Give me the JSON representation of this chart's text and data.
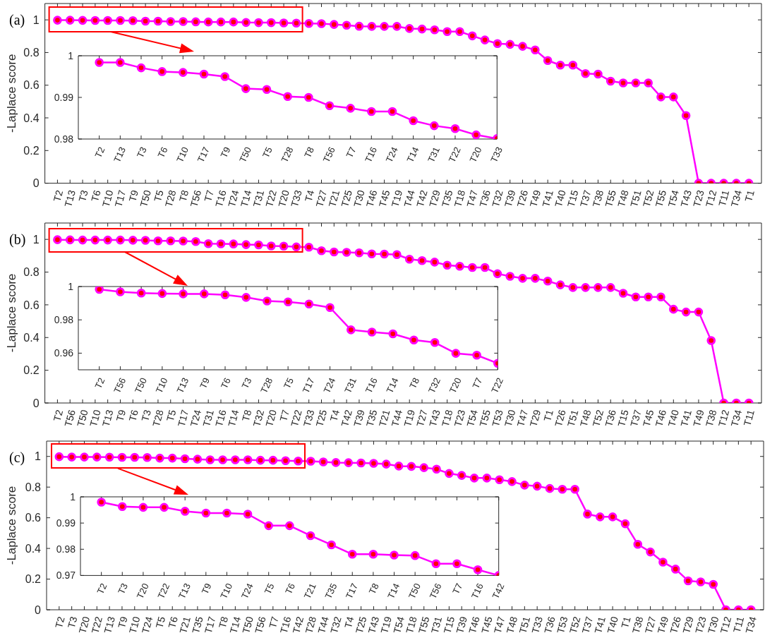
{
  "chart_data": [
    {
      "type": "line",
      "title": "(a)",
      "ylabel": "-Laplace score",
      "categories": [
        "T2",
        "T13",
        "T3",
        "T6",
        "T10",
        "T17",
        "T9",
        "T50",
        "T5",
        "T28",
        "T8",
        "T56",
        "T7",
        "T16",
        "T24",
        "T14",
        "T31",
        "T22",
        "T20",
        "T33",
        "T4",
        "T27",
        "T21",
        "T25",
        "T30",
        "T46",
        "T45",
        "T19",
        "T44",
        "T42",
        "T29",
        "T35",
        "T18",
        "T47",
        "T36",
        "T32",
        "T39",
        "T26",
        "T49",
        "T41",
        "T40",
        "T15",
        "T37",
        "T38",
        "T55",
        "T48",
        "T51",
        "T52",
        "T55",
        "T54",
        "T43",
        "T23",
        "T12",
        "T11",
        "T34",
        "T1"
      ],
      "values": [
        0.998,
        0.998,
        0.997,
        0.996,
        0.996,
        0.996,
        0.995,
        0.992,
        0.992,
        0.99,
        0.99,
        0.988,
        0.987,
        0.987,
        0.987,
        0.984,
        0.983,
        0.983,
        0.981,
        0.98,
        0.978,
        0.977,
        0.972,
        0.967,
        0.961,
        0.96,
        0.96,
        0.96,
        0.947,
        0.944,
        0.939,
        0.928,
        0.928,
        0.902,
        0.877,
        0.855,
        0.85,
        0.838,
        0.816,
        0.751,
        0.723,
        0.723,
        0.671,
        0.668,
        0.625,
        0.614,
        0.614,
        0.614,
        0.528,
        0.528,
        0.414,
        0,
        0,
        0,
        0,
        0
      ],
      "color": "#ff00ff",
      "colors": [
        "#ff0000",
        "#ff0000",
        "#ff0000",
        "#ff0000",
        "#ff0000",
        "#ff0000",
        "#ff0000",
        "#ff0000",
        "#ff0000",
        "#ff0000",
        "#ff0000",
        "#ff0000",
        "#ff0000",
        "#ff0000",
        "#ff0000",
        "#ff0000",
        "#ff0000",
        "#ff0000",
        "#ff0000",
        "#ff0000",
        "#ff0000",
        "#ff0000",
        "#ff0000",
        "#ff0000",
        "#ff0000",
        "#ff0000",
        "#ff0000",
        "#ff0000",
        "#ff0000",
        "#ff0000",
        "#ff0000",
        "#ff0000",
        "#ff0000",
        "#ff0000",
        "#ff0000",
        "#ff0000",
        "#ff0000",
        "#ff0000",
        "#ff0000",
        "#ff0000",
        "#ff0000",
        "#ff0000",
        "#ff0000",
        "#ff0000",
        "#ff0000",
        "#ff0000",
        "#ff0000",
        "#ff0000",
        "#ff0000",
        "#ff0000",
        "#ff0000",
        "#ff0000",
        "#ff0000",
        "#ff0000",
        "#ff0000",
        "#ff0000"
      ],
      "ylim": [
        0,
        1.1
      ],
      "yticks": [
        0,
        0.2,
        0.4,
        0.6,
        0.8,
        1
      ],
      "marker": "circle"
    },
    {
      "type": "line",
      "categories": [
        "T2",
        "T13",
        "T3",
        "T6",
        "T10",
        "T17",
        "T9",
        "T50",
        "T5",
        "T28",
        "T8",
        "T56",
        "T7",
        "T16",
        "T24",
        "T14",
        "T31",
        "T22",
        "T20",
        "T33"
      ],
      "values": [
        0.9984,
        0.9984,
        0.9971,
        0.9962,
        0.996,
        0.9956,
        0.995,
        0.9921,
        0.9919,
        0.9902,
        0.99,
        0.988,
        0.9874,
        0.9866,
        0.9866,
        0.9844,
        0.9832,
        0.9825,
        0.981,
        0.9801
      ],
      "color": "#ff00ff",
      "colors": [
        "#ff0000",
        "#ff0000",
        "#ff0000",
        "#ff0000",
        "#ff0000",
        "#ff0000",
        "#ff0000",
        "#ff0000",
        "#ff0000",
        "#ff0000",
        "#ff0000",
        "#ff0000",
        "#ff0000",
        "#ff0000",
        "#ff0000",
        "#ff0000",
        "#ff0000",
        "#ff0000",
        "#ff0000",
        "#ff0000"
      ],
      "ylim": [
        0.98,
        1
      ],
      "yticks": [
        0.98,
        0.99,
        1
      ],
      "marker": "circle"
    },
    {
      "type": "line",
      "title": "(b)",
      "ylabel": "-Laplace score",
      "categories": [
        "T2",
        "T56",
        "T50",
        "T10",
        "T13",
        "T9",
        "T6",
        "T3",
        "T28",
        "T5",
        "T17",
        "T24",
        "T31",
        "T16",
        "T14",
        "T8",
        "T32",
        "T20",
        "T7",
        "T22",
        "T33",
        "T25",
        "T4",
        "T42",
        "T39",
        "T35",
        "T21",
        "T44",
        "T19",
        "T27",
        "T43",
        "T18",
        "T23",
        "T54",
        "T55",
        "T53",
        "T30",
        "T47",
        "T29",
        "T1",
        "T26",
        "T51",
        "T48",
        "T52",
        "T36",
        "T15",
        "T37",
        "T45",
        "T46",
        "T40",
        "T41",
        "T49",
        "T38",
        "T12",
        "T34",
        "T11"
      ],
      "values": [
        0.998,
        0.997,
        0.996,
        0.996,
        0.996,
        0.996,
        0.995,
        0.994,
        0.991,
        0.991,
        0.99,
        0.987,
        0.974,
        0.973,
        0.972,
        0.968,
        0.966,
        0.96,
        0.959,
        0.954,
        0.952,
        0.931,
        0.923,
        0.921,
        0.918,
        0.911,
        0.91,
        0.907,
        0.879,
        0.87,
        0.861,
        0.842,
        0.836,
        0.828,
        0.828,
        0.79,
        0.774,
        0.762,
        0.762,
        0.745,
        0.722,
        0.706,
        0.706,
        0.706,
        0.706,
        0.671,
        0.648,
        0.648,
        0.648,
        0.573,
        0.556,
        0.556,
        0.382,
        0,
        0,
        0
      ],
      "color": "#ff00ff",
      "colors": [
        "#ff0000",
        "#ff0000",
        "#ff0000",
        "#ff0000",
        "#ff0000",
        "#ff0000",
        "#ff0000",
        "#ff0000",
        "#ff0000",
        "#ff0000",
        "#ff0000",
        "#ff0000",
        "#ff0000",
        "#ff0000",
        "#ff0000",
        "#ff0000",
        "#ff0000",
        "#ff0000",
        "#ff0000",
        "#ff0000",
        "#ff0000",
        "#ff0000",
        "#ff0000",
        "#ff0000",
        "#ff0000",
        "#ff0000",
        "#ff0000",
        "#ff0000",
        "#ff0000",
        "#ff0000",
        "#ff0000",
        "#ff0000",
        "#ff0000",
        "#ff0000",
        "#ff0000",
        "#ff0000",
        "#ff0000",
        "#ff0000",
        "#ff0000",
        "#ff0000",
        "#ff0000",
        "#ff0000",
        "#ff0000",
        "#ff0000",
        "#ff0000",
        "#ff0000",
        "#ff0000",
        "#ff0000",
        "#ff0000",
        "#ff0000",
        "#ff0000",
        "#ff0000",
        "#ff0000",
        "#ff0000",
        "#ff0000",
        "#ff0000"
      ],
      "ylim": [
        0,
        1.1
      ],
      "yticks": [
        0,
        0.2,
        0.4,
        0.6,
        0.8,
        1
      ],
      "marker": "circle"
    },
    {
      "type": "line",
      "categories": [
        "T2",
        "T56",
        "T50",
        "T10",
        "T13",
        "T9",
        "T6",
        "T3",
        "T28",
        "T5",
        "T17",
        "T24",
        "T31",
        "T16",
        "T14",
        "T8",
        "T32",
        "T20",
        "T7",
        "T22"
      ],
      "values": [
        0.9983,
        0.9968,
        0.9961,
        0.9958,
        0.9956,
        0.9956,
        0.995,
        0.9935,
        0.9913,
        0.9908,
        0.9895,
        0.9874,
        0.974,
        0.9727,
        0.9716,
        0.9679,
        0.9664,
        0.9599,
        0.9588,
        0.9539
      ],
      "color": "#ff00ff",
      "colors": [
        "#ff0000",
        "#ff0000",
        "#ff0000",
        "#ff0000",
        "#ff0000",
        "#ff0000",
        "#ff0000",
        "#ff0000",
        "#ff0000",
        "#ff0000",
        "#ff0000",
        "#ff0000",
        "#ff0000",
        "#ff0000",
        "#ff0000",
        "#ff0000",
        "#ff0000",
        "#ff0000",
        "#ff0000",
        "#ff0000"
      ],
      "ylim": [
        0.95,
        1
      ],
      "yticks": [
        0.96,
        0.98,
        1
      ],
      "marker": "circle"
    },
    {
      "type": "line",
      "title": "(c)",
      "ylabel": "-Laplace score",
      "categories": [
        "T2",
        "T3",
        "T20",
        "T22",
        "T13",
        "T9",
        "T10",
        "T24",
        "T5",
        "T6",
        "T21",
        "T35",
        "T17",
        "T8",
        "T14",
        "T50",
        "T56",
        "T7",
        "T16",
        "T42",
        "T28",
        "T44",
        "T32",
        "T4",
        "T25",
        "T43",
        "T19",
        "T54",
        "T18",
        "T55",
        "T31",
        "T15",
        "T39",
        "T46",
        "T45",
        "T47",
        "T48",
        "T51",
        "T33",
        "T36",
        "T53",
        "T52",
        "T37",
        "T41",
        "T40",
        "T1",
        "T38",
        "T27",
        "T49",
        "T26",
        "T29",
        "T23",
        "T30",
        "T12",
        "T11",
        "T34"
      ],
      "values": [
        0.998,
        0.996,
        0.996,
        0.996,
        0.995,
        0.994,
        0.994,
        0.993,
        0.989,
        0.989,
        0.985,
        0.982,
        0.978,
        0.978,
        0.978,
        0.978,
        0.975,
        0.975,
        0.972,
        0.97,
        0.969,
        0.964,
        0.96,
        0.959,
        0.957,
        0.955,
        0.95,
        0.937,
        0.935,
        0.927,
        0.917,
        0.889,
        0.876,
        0.859,
        0.859,
        0.848,
        0.836,
        0.813,
        0.806,
        0.791,
        0.786,
        0.786,
        0.624,
        0.606,
        0.606,
        0.561,
        0.427,
        0.377,
        0.311,
        0.265,
        0.189,
        0.182,
        0.166,
        0,
        0,
        0
      ],
      "color": "#ff00ff",
      "colors": [
        "#ff0000",
        "#ff0000",
        "#ff0000",
        "#ff0000",
        "#ff0000",
        "#ff0000",
        "#ff0000",
        "#ff0000",
        "#ff0000",
        "#ff0000",
        "#ff0000",
        "#ff0000",
        "#ff0000",
        "#ff0000",
        "#ff0000",
        "#ff0000",
        "#ff0000",
        "#ff0000",
        "#ff0000",
        "#ff0000",
        "#ff0000",
        "#ff0000",
        "#ff0000",
        "#ff0000",
        "#ff0000",
        "#ff0000",
        "#ff0000",
        "#ff0000",
        "#ff0000",
        "#ff0000",
        "#ff0000",
        "#ff0000",
        "#ff0000",
        "#ff0000",
        "#ff0000",
        "#ff0000",
        "#ff0000",
        "#ff0000",
        "#ff0000",
        "#ff0000",
        "#ff0000",
        "#ff0000",
        "#ff0000",
        "#ff0000",
        "#ff0000",
        "#ff0000",
        "#ff0000",
        "#ff0000",
        "#ff0000",
        "#ff0000",
        "#ff0000",
        "#ff0000",
        "#ff0000",
        "#ff0000",
        "#ff0000",
        "#ff0000"
      ],
      "ylim": [
        0,
        1.1
      ],
      "yticks": [
        0,
        0.2,
        0.4,
        0.6,
        0.8,
        1
      ],
      "marker": "circle"
    },
    {
      "type": "line",
      "categories": [
        "T2",
        "T3",
        "T20",
        "T22",
        "T13",
        "T9",
        "T10",
        "T24",
        "T5",
        "T6",
        "T21",
        "T35",
        "T17",
        "T8",
        "T14",
        "T50",
        "T56",
        "T7",
        "T16",
        "T42"
      ],
      "values": [
        0.998,
        0.9963,
        0.996,
        0.996,
        0.9945,
        0.9938,
        0.9938,
        0.9934,
        0.989,
        0.989,
        0.9852,
        0.9817,
        0.9781,
        0.9781,
        0.9778,
        0.9776,
        0.9745,
        0.9745,
        0.9722,
        0.97
      ],
      "color": "#ff00ff",
      "colors": [
        "#ff0000",
        "#ff0000",
        "#ff0000",
        "#ff0000",
        "#ff0000",
        "#ff0000",
        "#ff0000",
        "#ff0000",
        "#ff0000",
        "#ff0000",
        "#ff0000",
        "#ff0000",
        "#ff0000",
        "#ff0000",
        "#ff0000",
        "#ff0000",
        "#ff0000",
        "#ff0000",
        "#ff0000",
        "#ff0000"
      ],
      "ylim": [
        0.97,
        1
      ],
      "yticks": [
        0.97,
        0.98,
        0.99,
        1
      ],
      "marker": "circle"
    }
  ]
}
